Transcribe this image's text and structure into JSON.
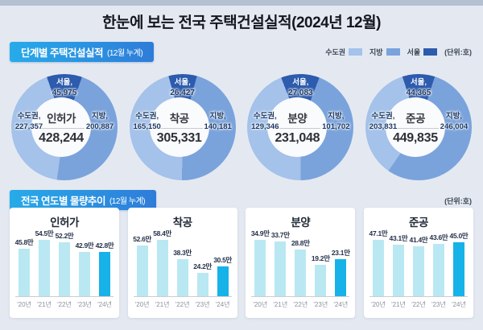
{
  "page": {
    "title": "한눈에 보는 전국 주택건설실적(2024년 12월)"
  },
  "colors": {
    "sudogwon": "#a4c2ea",
    "jibang": "#7aa3dc",
    "seoul": "#2d5bad",
    "bar": "#b9e8f3",
    "bar_highlight": "#16b2e8"
  },
  "section1": {
    "title": "단계별 주택건설실적",
    "subtitle": "(12월 누계)",
    "unit_label": "(단위:호)",
    "legend": [
      {
        "label": "수도권",
        "color_key": "sudogwon"
      },
      {
        "label": "지방",
        "color_key": "jibang"
      },
      {
        "label": "서울",
        "color_key": "seoul"
      }
    ]
  },
  "section2": {
    "title": "전국 연도별 물량추이",
    "subtitle": "(12월 누계)",
    "unit_label": "(단위:호)"
  },
  "chart_data": [
    {
      "type": "pie",
      "subtype": "donut",
      "title": "인허가",
      "unit": "호",
      "total": 428244,
      "total_label": "428,244",
      "segments": [
        {
          "name": "서울,",
          "value": 45975,
          "label": "45,975"
        },
        {
          "name": "수도권,",
          "value": 227357,
          "label": "227,357"
        },
        {
          "name": "지방,",
          "value": 200887,
          "label": "200,887"
        }
      ]
    },
    {
      "type": "pie",
      "subtype": "donut",
      "title": "착공",
      "unit": "호",
      "total": 305331,
      "total_label": "305,331",
      "segments": [
        {
          "name": "서울,",
          "value": 26427,
          "label": "26,427"
        },
        {
          "name": "수도권,",
          "value": 165150,
          "label": "165,150"
        },
        {
          "name": "지방,",
          "value": 140181,
          "label": "140,181"
        }
      ]
    },
    {
      "type": "pie",
      "subtype": "donut",
      "title": "분양",
      "unit": "호",
      "total": 231048,
      "total_label": "231,048",
      "segments": [
        {
          "name": "서울,",
          "value": 27083,
          "label": "27,083"
        },
        {
          "name": "수도권,",
          "value": 129346,
          "label": "129,346"
        },
        {
          "name": "지방,",
          "value": 101702,
          "label": "101,702"
        }
      ]
    },
    {
      "type": "pie",
      "subtype": "donut",
      "title": "준공",
      "unit": "호",
      "total": 449835,
      "total_label": "449,835",
      "segments": [
        {
          "name": "서울,",
          "value": 44365,
          "label": "44,365"
        },
        {
          "name": "수도권,",
          "value": 203831,
          "label": "203,831"
        },
        {
          "name": "지방,",
          "value": 246004,
          "label": "246,004"
        }
      ]
    },
    {
      "type": "bar",
      "title": "인허가",
      "unit": "만 호",
      "categories": [
        "'20년",
        "'21년",
        "'22년",
        "'23년",
        "'24년"
      ],
      "values": [
        45.8,
        54.5,
        52.2,
        42.9,
        42.8
      ],
      "labels": [
        "45.8만",
        "54.5만",
        "52.2만",
        "42.9만",
        "42.8만"
      ],
      "highlight_index": 4
    },
    {
      "type": "bar",
      "title": "착공",
      "unit": "만 호",
      "categories": [
        "'20년",
        "'21년",
        "'22년",
        "'23년",
        "'24년"
      ],
      "values": [
        52.6,
        58.4,
        38.3,
        24.2,
        30.5
      ],
      "labels": [
        "52.6만",
        "58.4만",
        "38.3만",
        "24.2만",
        "30.5만"
      ],
      "highlight_index": 4
    },
    {
      "type": "bar",
      "title": "분양",
      "unit": "만 호",
      "categories": [
        "'20년",
        "'21년",
        "'22년",
        "'23년",
        "'24년"
      ],
      "values": [
        34.9,
        33.7,
        28.8,
        19.2,
        23.1
      ],
      "labels": [
        "34.9만",
        "33.7만",
        "28.8만",
        "19.2만",
        "23.1만"
      ],
      "highlight_index": 4
    },
    {
      "type": "bar",
      "title": "준공",
      "unit": "만 호",
      "categories": [
        "'20년",
        "'21년",
        "'22년",
        "'23년",
        "'24년"
      ],
      "values": [
        47.1,
        43.1,
        41.4,
        43.6,
        45.0
      ],
      "labels": [
        "47.1만",
        "43.1만",
        "41.4만",
        "43.6만",
        "45.0만"
      ],
      "highlight_index": 4
    }
  ]
}
